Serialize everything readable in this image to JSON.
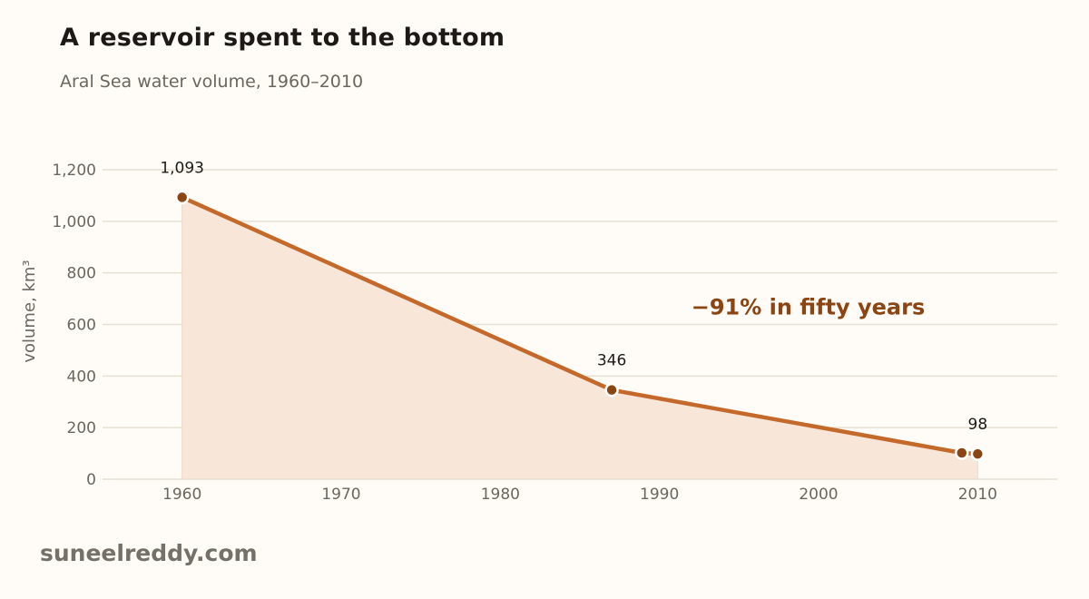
{
  "header": {
    "title": "A reservoir spent to the bottom",
    "subtitle": "Aral Sea water volume, 1960–2010"
  },
  "footer": {
    "source": "suneelreddy.com"
  },
  "colors": {
    "line": "#c4692a",
    "point": "#8b4513",
    "area": "#f8e6d9",
    "annotation": "#8b4513",
    "grid": "#e6e0d3"
  },
  "chart_data": {
    "type": "area",
    "title": "A reservoir spent to the bottom",
    "subtitle": "Aral Sea water volume, 1960–2010",
    "xlabel": "",
    "ylabel": "volume, km³",
    "xlim": [
      1955,
      2015
    ],
    "ylim": [
      0,
      1200
    ],
    "x_ticks": [
      1960,
      1970,
      1980,
      1990,
      2000,
      2010
    ],
    "y_ticks": [
      0,
      200,
      400,
      600,
      800,
      1000,
      1200
    ],
    "y_tick_labels": [
      "0",
      "200",
      "400",
      "600",
      "800",
      "1,000",
      "1,200"
    ],
    "grid": true,
    "series": [
      {
        "x": [
          1960,
          1987,
          2009,
          2010
        ],
        "y": [
          1093,
          346,
          102,
          98
        ]
      }
    ],
    "data_labels": [
      {
        "x": 1960,
        "y": 1093,
        "text": "1,093"
      },
      {
        "x": 1987,
        "y": 346,
        "text": "346"
      },
      {
        "x": 2010,
        "y": 98,
        "text": "98"
      }
    ],
    "annotation": {
      "text": "−91% in fifty years",
      "x": 1992,
      "y": 670
    }
  }
}
